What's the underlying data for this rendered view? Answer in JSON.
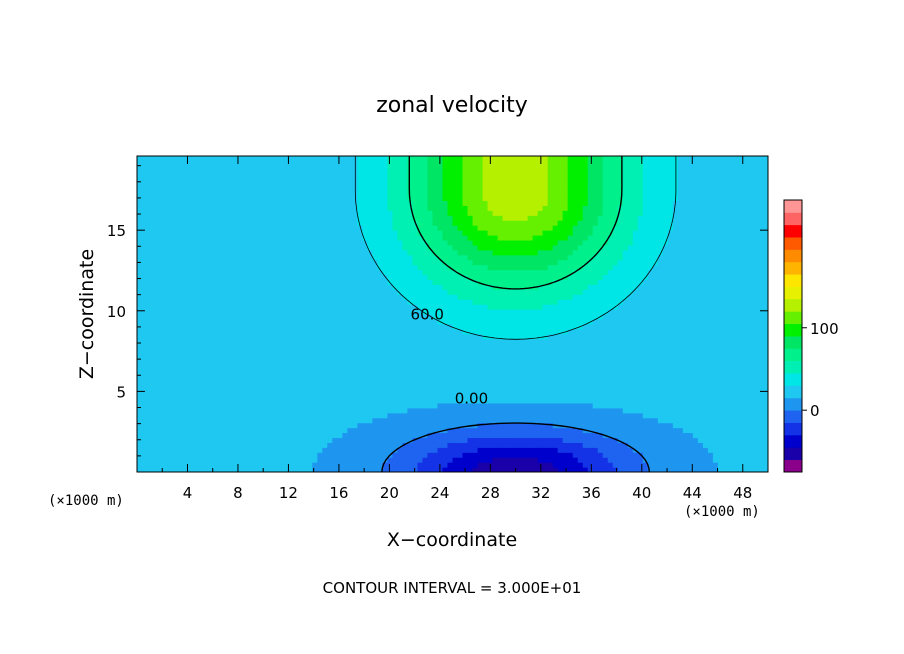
{
  "chart_data": {
    "type": "contour",
    "title": "zonal velocity",
    "xlabel": "X−coordinate",
    "ylabel": "Z−coordinate",
    "x_unit_left": "(×1000 m)",
    "x_unit_right": "(×1000 m)",
    "footer": "CONTOUR INTERVAL = 3.000E+01",
    "xlim": [
      0,
      50
    ],
    "ylim": [
      0,
      19.6
    ],
    "x_ticks": [
      4,
      8,
      12,
      16,
      20,
      24,
      28,
      32,
      36,
      40,
      44,
      48
    ],
    "x_tick_labels": [
      "4",
      "8",
      "12",
      "16",
      "20",
      "24",
      "28",
      "32",
      "36",
      "40",
      "44",
      "48"
    ],
    "y_ticks": [
      5,
      10,
      15
    ],
    "y_tick_labels": [
      "5",
      "10",
      "15"
    ],
    "contour_labels": [
      {
        "text": "60.0",
        "x": 23.0,
        "y": 9.7
      },
      {
        "text": "0.00",
        "x": 26.5,
        "y": 4.5
      }
    ],
    "colorbar": {
      "tick_labels": [
        "100",
        "0"
      ],
      "tick_values": [
        100,
        0
      ],
      "range": [
        -75,
        135
      ],
      "step": 15,
      "colors": [
        "#8b008b",
        "#1a00a8",
        "#0000cd",
        "#1432e6",
        "#1e64f0",
        "#1e96f0",
        "#1ec8f0",
        "#00e6e6",
        "#00f0b4",
        "#00f08c",
        "#00e664",
        "#00f000",
        "#64f000",
        "#b4f000",
        "#e6f000",
        "#ffe600",
        "#ffb400",
        "#ff8c00",
        "#ff5a00",
        "#ff0000",
        "#ff6464",
        "#ff9696"
      ]
    },
    "field": {
      "description_levels": [
        -75,
        -60,
        -45,
        -30,
        -15,
        0,
        15,
        30,
        45,
        60,
        75,
        90,
        105,
        120,
        135
      ],
      "peak_positive": {
        "x": 30,
        "y": 17.5,
        "value": 110
      },
      "peak_negative": {
        "x": 30,
        "y": 0.2,
        "value": -70
      }
    }
  }
}
